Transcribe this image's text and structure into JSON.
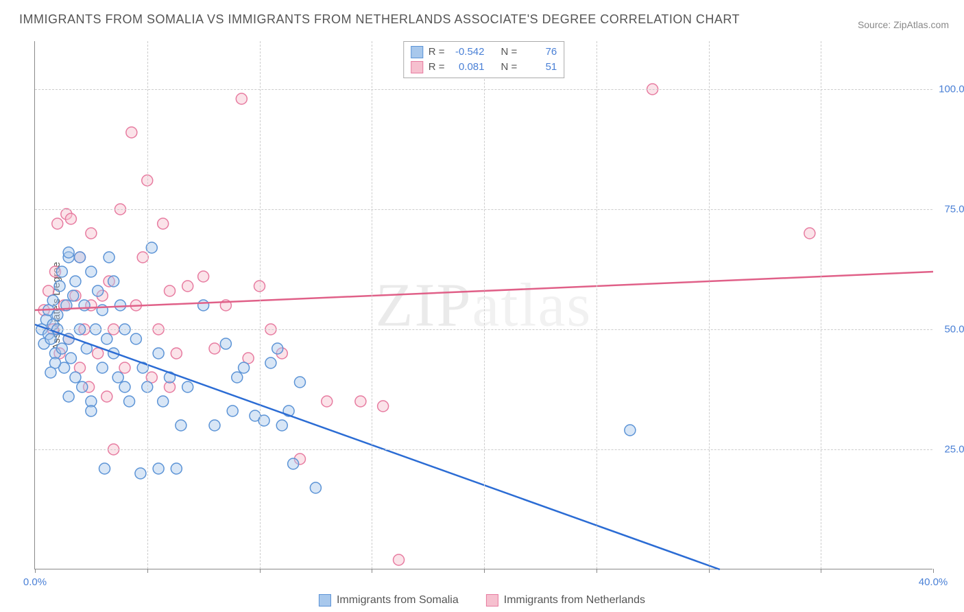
{
  "title": "IMMIGRANTS FROM SOMALIA VS IMMIGRANTS FROM NETHERLANDS ASSOCIATE'S DEGREE CORRELATION CHART",
  "source": "Source: ZipAtlas.com",
  "ylabel": "Associate's Degree",
  "watermark": "ZIPatlas",
  "chart": {
    "type": "scatter",
    "background_color": "#ffffff",
    "grid_color": "#cccccc",
    "axis_color": "#888888",
    "xlim": [
      0,
      40
    ],
    "ylim": [
      0,
      110
    ],
    "x_ticks": [
      0,
      10,
      20,
      30,
      40
    ],
    "x_tick_labels": [
      "0.0%",
      "",
      "",
      "",
      "40.0%"
    ],
    "x_minor_ticks": [
      5,
      15,
      25,
      35
    ],
    "y_ticks": [
      25,
      50,
      75,
      100
    ],
    "y_tick_labels": [
      "25.0%",
      "50.0%",
      "75.0%",
      "100.0%"
    ],
    "tick_label_color": "#4a80d6",
    "tick_label_fontsize": 15,
    "marker_radius": 8,
    "series": [
      {
        "name": "Immigrants from Somalia",
        "color_fill": "#a8c8ec",
        "color_stroke": "#5b93d6",
        "trend_color": "#2b6cd4",
        "R": "-0.542",
        "N": "76",
        "trend": {
          "x1": 0,
          "y1": 51,
          "x2": 30.5,
          "y2": 0
        },
        "points": [
          [
            0.3,
            50
          ],
          [
            0.4,
            47
          ],
          [
            0.5,
            52
          ],
          [
            0.6,
            49
          ],
          [
            0.6,
            54
          ],
          [
            0.7,
            48
          ],
          [
            0.8,
            51
          ],
          [
            0.8,
            56
          ],
          [
            0.9,
            45
          ],
          [
            1.0,
            50
          ],
          [
            1.0,
            53
          ],
          [
            1.1,
            59
          ],
          [
            1.2,
            46
          ],
          [
            1.2,
            62
          ],
          [
            1.3,
            42
          ],
          [
            1.4,
            55
          ],
          [
            1.5,
            48
          ],
          [
            1.5,
            65
          ],
          [
            1.5,
            66
          ],
          [
            1.6,
            44
          ],
          [
            1.7,
            57
          ],
          [
            1.8,
            40
          ],
          [
            1.8,
            60
          ],
          [
            2.0,
            50
          ],
          [
            2.0,
            65
          ],
          [
            2.1,
            38
          ],
          [
            2.2,
            55
          ],
          [
            2.3,
            46
          ],
          [
            2.5,
            62
          ],
          [
            2.5,
            35
          ],
          [
            2.7,
            50
          ],
          [
            2.8,
            58
          ],
          [
            3.0,
            42
          ],
          [
            3.0,
            54
          ],
          [
            3.1,
            21
          ],
          [
            3.2,
            48
          ],
          [
            3.3,
            65
          ],
          [
            3.5,
            45
          ],
          [
            3.5,
            60
          ],
          [
            3.7,
            40
          ],
          [
            3.8,
            55
          ],
          [
            4.0,
            38
          ],
          [
            4.0,
            50
          ],
          [
            4.2,
            35
          ],
          [
            4.5,
            48
          ],
          [
            4.7,
            20
          ],
          [
            4.8,
            42
          ],
          [
            5.0,
            38
          ],
          [
            5.2,
            67
          ],
          [
            5.5,
            21
          ],
          [
            5.5,
            45
          ],
          [
            5.7,
            35
          ],
          [
            6.0,
            40
          ],
          [
            6.3,
            21
          ],
          [
            6.5,
            30
          ],
          [
            6.8,
            38
          ],
          [
            7.5,
            55
          ],
          [
            8.0,
            30
          ],
          [
            8.5,
            47
          ],
          [
            8.8,
            33
          ],
          [
            9.0,
            40
          ],
          [
            9.3,
            42
          ],
          [
            9.8,
            32
          ],
          [
            10.2,
            31
          ],
          [
            10.5,
            43
          ],
          [
            10.8,
            46
          ],
          [
            11.0,
            30
          ],
          [
            11.3,
            33
          ],
          [
            11.5,
            22
          ],
          [
            11.8,
            39
          ],
          [
            12.5,
            17
          ],
          [
            26.5,
            29
          ],
          [
            1.5,
            36
          ],
          [
            2.5,
            33
          ],
          [
            0.9,
            43
          ],
          [
            0.7,
            41
          ]
        ]
      },
      {
        "name": "Immigrants from Netherlands",
        "color_fill": "#f6c0cf",
        "color_stroke": "#e77ba0",
        "trend_color": "#e06088",
        "R": "0.081",
        "N": "51",
        "trend": {
          "x1": 0,
          "y1": 54,
          "x2": 40,
          "y2": 62
        },
        "points": [
          [
            0.4,
            54
          ],
          [
            0.6,
            58
          ],
          [
            0.8,
            50
          ],
          [
            0.9,
            62
          ],
          [
            1.0,
            72
          ],
          [
            1.1,
            45
          ],
          [
            1.3,
            55
          ],
          [
            1.4,
            74
          ],
          [
            1.5,
            48
          ],
          [
            1.6,
            73
          ],
          [
            1.8,
            57
          ],
          [
            2.0,
            42
          ],
          [
            2.0,
            65
          ],
          [
            2.2,
            50
          ],
          [
            2.4,
            38
          ],
          [
            2.5,
            55
          ],
          [
            2.5,
            70
          ],
          [
            2.8,
            45
          ],
          [
            3.0,
            57
          ],
          [
            3.2,
            36
          ],
          [
            3.3,
            60
          ],
          [
            3.5,
            25
          ],
          [
            3.5,
            50
          ],
          [
            3.8,
            75
          ],
          [
            4.0,
            42
          ],
          [
            4.3,
            91
          ],
          [
            4.5,
            55
          ],
          [
            4.8,
            65
          ],
          [
            5.0,
            81
          ],
          [
            5.2,
            40
          ],
          [
            5.5,
            50
          ],
          [
            5.7,
            72
          ],
          [
            6.0,
            38
          ],
          [
            6.0,
            58
          ],
          [
            6.3,
            45
          ],
          [
            6.8,
            59
          ],
          [
            7.5,
            61
          ],
          [
            8.0,
            46
          ],
          [
            8.5,
            55
          ],
          [
            9.2,
            98
          ],
          [
            9.5,
            44
          ],
          [
            10.0,
            59
          ],
          [
            10.5,
            50
          ],
          [
            11.0,
            45
          ],
          [
            11.8,
            23
          ],
          [
            13.0,
            35
          ],
          [
            14.5,
            35
          ],
          [
            15.5,
            34
          ],
          [
            16.2,
            2
          ],
          [
            27.5,
            100
          ],
          [
            34.5,
            70
          ]
        ]
      }
    ]
  },
  "legend_top": {
    "rows": [
      {
        "swatch_fill": "#a8c8ec",
        "swatch_stroke": "#5b93d6",
        "r_label": "R =",
        "r_val": "-0.542",
        "n_label": "N =",
        "n_val": "76"
      },
      {
        "swatch_fill": "#f6c0cf",
        "swatch_stroke": "#e77ba0",
        "r_label": "R =",
        "r_val": "0.081",
        "n_label": "N =",
        "n_val": "51"
      }
    ]
  },
  "legend_bottom": {
    "items": [
      {
        "swatch_fill": "#a8c8ec",
        "swatch_stroke": "#5b93d6",
        "label": "Immigrants from Somalia"
      },
      {
        "swatch_fill": "#f6c0cf",
        "swatch_stroke": "#e77ba0",
        "label": "Immigrants from Netherlands"
      }
    ]
  }
}
